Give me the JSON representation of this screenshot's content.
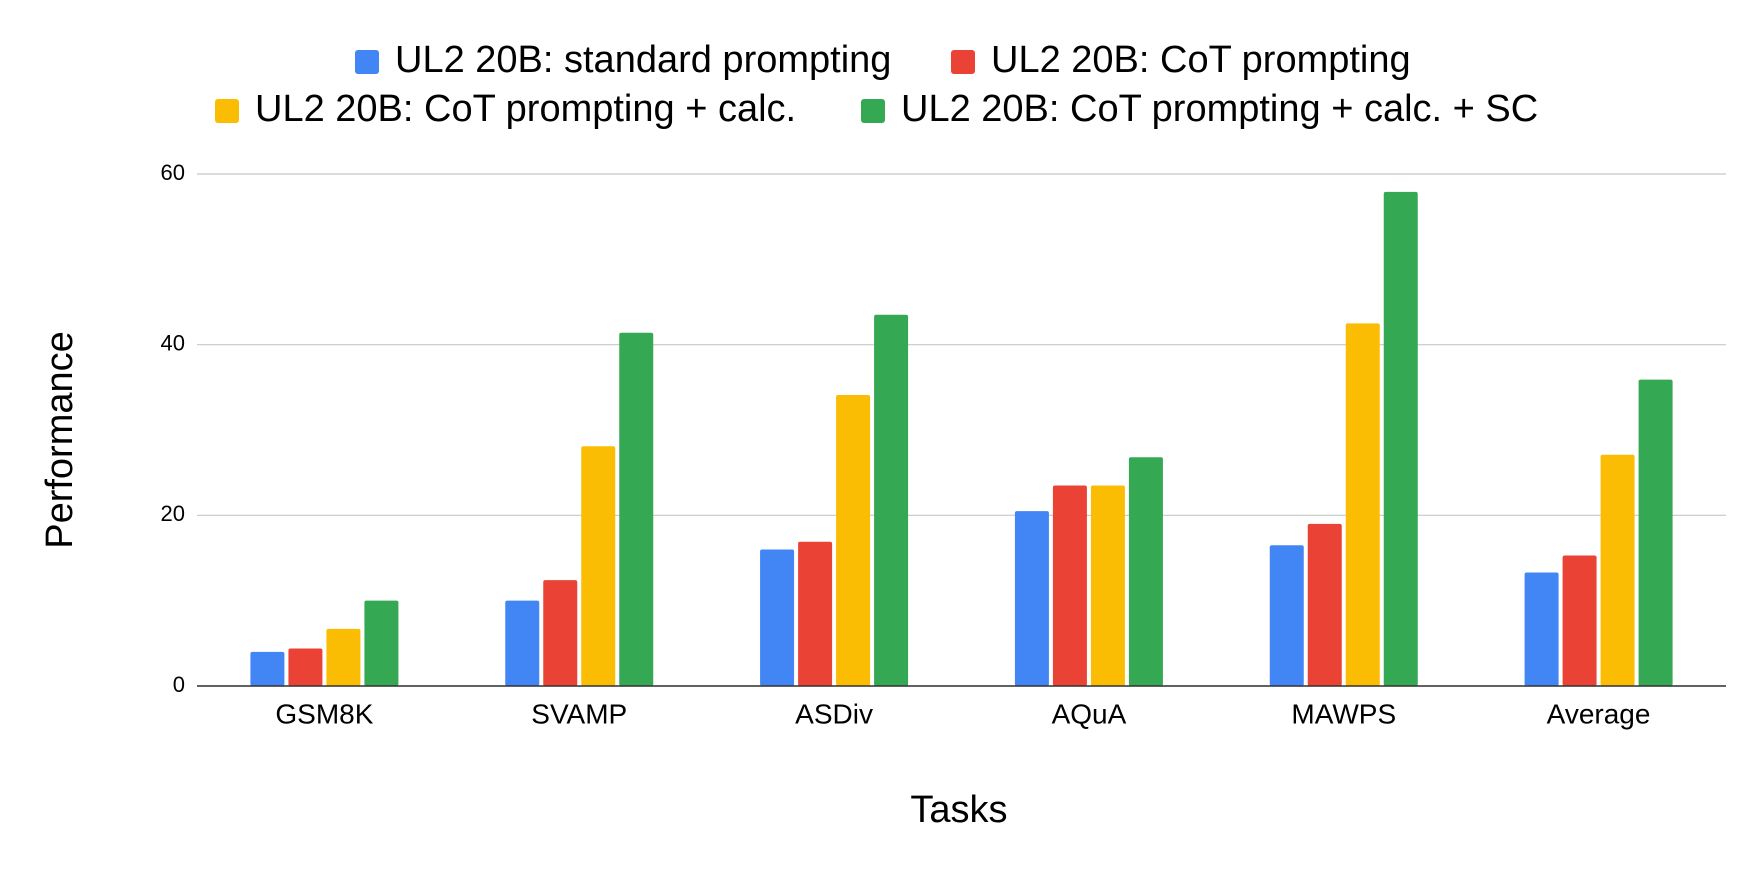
{
  "chart_data": {
    "type": "bar",
    "x_label": "Tasks",
    "y_label": "Performance",
    "categories": [
      "GSM8K",
      "SVAMP",
      "ASDiv",
      "AQuA",
      "MAWPS",
      "Average"
    ],
    "series": [
      {
        "name": "UL2 20B: standard prompting",
        "color": "#4285f4",
        "values": [
          4.0,
          10.0,
          16.0,
          20.5,
          16.5,
          13.3
        ]
      },
      {
        "name": "UL2 20B: CoT prompting",
        "color": "#ea4335",
        "values": [
          4.4,
          12.4,
          16.9,
          23.5,
          19.0,
          15.3
        ]
      },
      {
        "name": "UL2 20B: CoT prompting + calc.",
        "color": "#fbbc04",
        "values": [
          6.7,
          28.1,
          34.1,
          23.5,
          42.5,
          27.1
        ]
      },
      {
        "name": "UL2 20B: CoT prompting + calc. + SC",
        "color": "#34a853",
        "values": [
          10.0,
          41.4,
          43.5,
          26.8,
          57.9,
          35.9
        ]
      }
    ],
    "ylim": [
      0,
      60
    ],
    "yticks": [
      0,
      20,
      40,
      60
    ],
    "grid": true,
    "legend": "top"
  }
}
